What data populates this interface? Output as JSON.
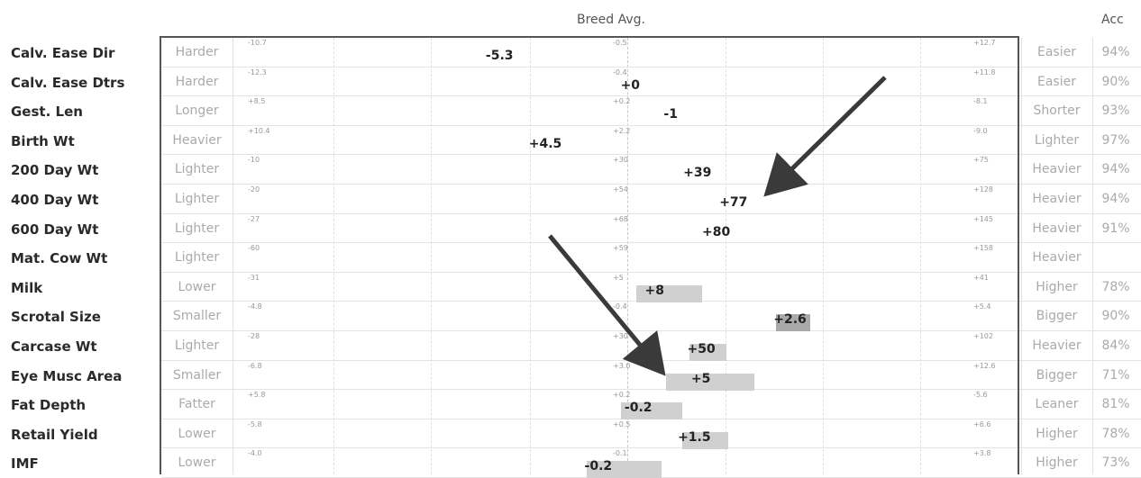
{
  "header": {
    "breed_avg": "Breed Avg.",
    "acc": "Acc"
  },
  "colors": {
    "bar": "#d0d0d0",
    "highlight_bar": "#a9a9a9",
    "arrow": "#3a3a3a"
  },
  "chart_data": {
    "type": "bar",
    "title": "",
    "rows": [
      {
        "trait": "Calv. Ease Dir",
        "low_label": "Harder",
        "high_label": "Easier",
        "acc": "94%",
        "left_tick": "-10.7",
        "mid_tick": "-0.5",
        "right_tick": "+12.7",
        "value": "-5.3",
        "pos": 0.339
      },
      {
        "trait": "Calv. Ease Dtrs",
        "low_label": "Harder",
        "high_label": "Easier",
        "acc": "90%",
        "left_tick": "-12.3",
        "mid_tick": "-0.4",
        "right_tick": "+11.8",
        "value": "+0",
        "pos": 0.511
      },
      {
        "trait": "Gest. Len",
        "low_label": "Longer",
        "high_label": "Shorter",
        "acc": "93%",
        "left_tick": "+8.5",
        "mid_tick": "+0.2",
        "right_tick": "-8.1",
        "value": "-1",
        "pos": 0.566
      },
      {
        "trait": "Birth Wt",
        "low_label": "Heavier",
        "high_label": "Lighter",
        "acc": "97%",
        "left_tick": "+10.4",
        "mid_tick": "+2.2",
        "right_tick": "-9.0",
        "value": "+4.5",
        "pos": 0.394
      },
      {
        "trait": "200 Day Wt",
        "low_label": "Lighter",
        "high_label": "Heavier",
        "acc": "94%",
        "left_tick": "-10",
        "mid_tick": "+30",
        "right_tick": "+75",
        "value": "+39",
        "pos": 0.591
      },
      {
        "trait": "400 Day Wt",
        "low_label": "Lighter",
        "high_label": "Heavier",
        "acc": "94%",
        "left_tick": "-20",
        "mid_tick": "+54",
        "right_tick": "+128",
        "value": "+77",
        "pos": 0.637
      },
      {
        "trait": "600 Day Wt",
        "low_label": "Lighter",
        "high_label": "Heavier",
        "acc": "91%",
        "left_tick": "-27",
        "mid_tick": "+68",
        "right_tick": "+145",
        "value": "+80",
        "pos": 0.615
      },
      {
        "trait": "Mat. Cow Wt",
        "low_label": "Lighter",
        "high_label": "Heavier",
        "acc": "",
        "left_tick": "-60",
        "mid_tick": "+59",
        "right_tick": "+158",
        "value": "",
        "pos": null
      },
      {
        "trait": "Milk",
        "low_label": "Lower",
        "high_label": "Higher",
        "acc": "78%",
        "left_tick": "-31",
        "mid_tick": "+5",
        "right_tick": "+41",
        "value": "+8",
        "pos": 0.542,
        "bar_from": 0.513,
        "bar_to": 0.597
      },
      {
        "trait": "Scrotal Size",
        "low_label": "Smaller",
        "high_label": "Bigger",
        "acc": "90%",
        "left_tick": "-4.8",
        "mid_tick": "-0.4",
        "right_tick": "+5.4",
        "value": "+2.6",
        "pos": 0.706,
        "bar_from": 0.691,
        "bar_to": 0.735,
        "highlight": true
      },
      {
        "trait": "Carcase Wt",
        "low_label": "Lighter",
        "high_label": "Heavier",
        "acc": "84%",
        "left_tick": "-28",
        "mid_tick": "+30",
        "right_tick": "+102",
        "value": "+50",
        "pos": 0.596,
        "bar_from": 0.58,
        "bar_to": 0.628
      },
      {
        "trait": "Eye Musc Area",
        "low_label": "Smaller",
        "high_label": "Bigger",
        "acc": "71%",
        "left_tick": "-6.8",
        "mid_tick": "+3.0",
        "right_tick": "+12.6",
        "value": "+5",
        "pos": 0.601,
        "bar_from": 0.551,
        "bar_to": 0.663
      },
      {
        "trait": "Fat Depth",
        "low_label": "Fatter",
        "high_label": "Leaner",
        "acc": "81%",
        "left_tick": "+5.8",
        "mid_tick": "+0.2",
        "right_tick": "-5.6",
        "value": "-0.2",
        "pos": 0.516,
        "bar_from": 0.493,
        "bar_to": 0.571
      },
      {
        "trait": "Retail Yield",
        "low_label": "Lower",
        "high_label": "Higher",
        "acc": "78%",
        "left_tick": "-5.8",
        "mid_tick": "+0.5",
        "right_tick": "+6.6",
        "value": "+1.5",
        "pos": 0.584,
        "bar_from": 0.571,
        "bar_to": 0.63
      },
      {
        "trait": "IMF",
        "low_label": "Lower",
        "high_label": "Higher",
        "acc": "73%",
        "left_tick": "-4.0",
        "mid_tick": "-0.1",
        "right_tick": "+3.8",
        "value": "-0.2",
        "pos": 0.465,
        "bar_from": 0.449,
        "bar_to": 0.545
      }
    ]
  }
}
